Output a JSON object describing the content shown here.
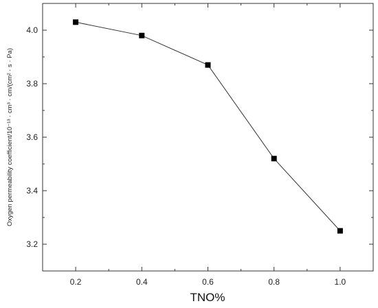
{
  "chart_data": {
    "type": "line",
    "title": "",
    "xlabel": "TNO%",
    "ylabel": "Oxygen permeability coefficient/10⁻¹³ · cm³ · cm/(cm² · s · Pa)",
    "x": [
      0.2,
      0.4,
      0.6,
      0.8,
      1.0
    ],
    "series": [
      {
        "values": [
          4.03,
          3.98,
          3.87,
          3.52,
          3.25
        ]
      }
    ],
    "xlim": [
      0.1,
      1.1
    ],
    "ylim": [
      3.1,
      4.1
    ],
    "xticks": [
      "0.2",
      "0.4",
      "0.6",
      "0.8",
      "1.0"
    ],
    "yticks": [
      "3.2",
      "3.4",
      "3.6",
      "3.8",
      "4.0"
    ],
    "grid": false,
    "legend": "none",
    "line_color": "#333333",
    "marker_color": "#000000"
  }
}
